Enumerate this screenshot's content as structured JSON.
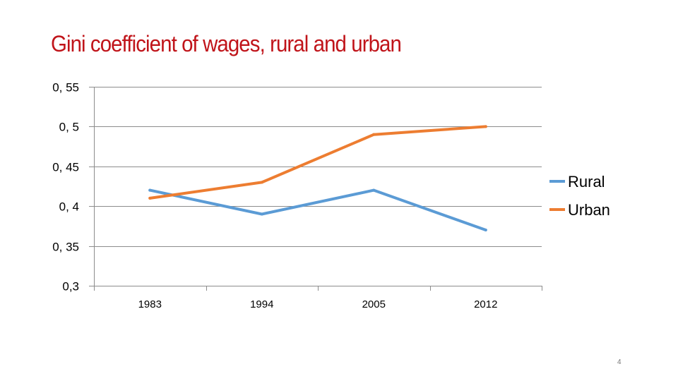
{
  "slide": {
    "title": "Gini coefficient of wages, rural and urban",
    "page_number": "4"
  },
  "chart_data": {
    "type": "line",
    "title": "Gini coefficient of wages, rural and urban",
    "categories": [
      "1983",
      "1994",
      "2005",
      "2012"
    ],
    "series": [
      {
        "name": "Rural",
        "color": "#5b9bd5",
        "values": [
          0.42,
          0.39,
          0.42,
          0.37
        ]
      },
      {
        "name": "Urban",
        "color": "#ed7d31",
        "values": [
          0.41,
          0.43,
          0.49,
          0.5
        ]
      }
    ],
    "ylim": [
      0.3,
      0.55
    ],
    "yticks": [
      {
        "value": 0.3,
        "label": "0,3"
      },
      {
        "value": 0.35,
        "label": "0, 35"
      },
      {
        "value": 0.4,
        "label": "0, 4"
      },
      {
        "value": 0.45,
        "label": "0, 45"
      },
      {
        "value": 0.5,
        "label": "0, 5"
      },
      {
        "value": 0.55,
        "label": "0, 55"
      }
    ],
    "grid": true,
    "legend": "right",
    "xlabel": "",
    "ylabel": ""
  }
}
